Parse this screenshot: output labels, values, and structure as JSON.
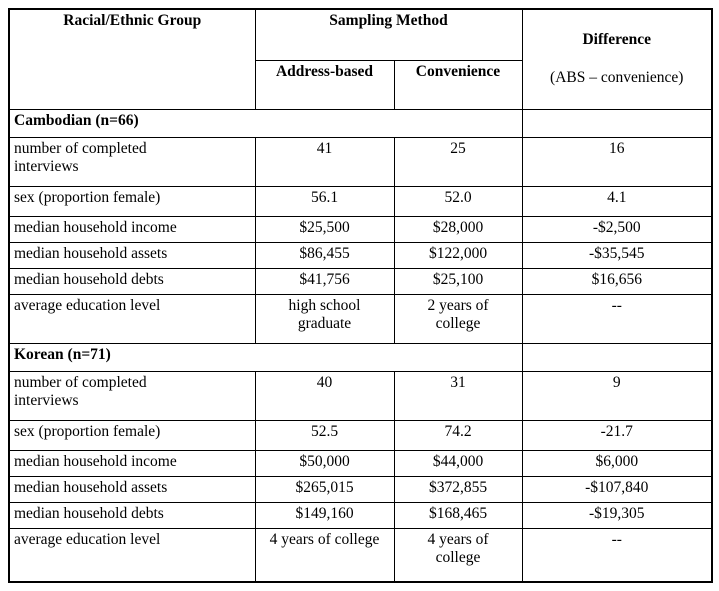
{
  "chart_data": {
    "type": "table",
    "header": {
      "group_col": "Racial/Ethnic Group",
      "sampling_method": "Sampling Method",
      "address_based": "Address-based",
      "convenience": "Convenience",
      "difference": "Difference",
      "difference_sub": "(ABS – convenience)"
    },
    "sections": [
      {
        "label": "Cambodian (n=66)",
        "rows": [
          {
            "label": "number of completed\ninterviews",
            "abs": "41",
            "conv": "25",
            "diff": "16"
          },
          {
            "label": "sex (proportion female)",
            "abs": "56.1",
            "conv": "52.0",
            "diff": "4.1"
          },
          {
            "label": "median household income",
            "abs": "$25,500",
            "conv": "$28,000",
            "diff": "-$2,500"
          },
          {
            "label": "median household assets",
            "abs": "$86,455",
            "conv": "$122,000",
            "diff": "-$35,545"
          },
          {
            "label": "median household debts",
            "abs": "$41,756",
            "conv": "$25,100",
            "diff": "$16,656"
          },
          {
            "label": "average education level",
            "abs": "high school\ngraduate",
            "conv": "2 years of\ncollege",
            "diff": "--"
          }
        ]
      },
      {
        "label": "Korean (n=71)",
        "rows": [
          {
            "label": "number of completed\ninterviews",
            "abs": "40",
            "conv": "31",
            "diff": "9"
          },
          {
            "label": "sex (proportion female)",
            "abs": "52.5",
            "conv": "74.2",
            "diff": "-21.7"
          },
          {
            "label": "median household income",
            "abs": "$50,000",
            "conv": "$44,000",
            "diff": "$6,000"
          },
          {
            "label": "median household assets",
            "abs": "$265,015",
            "conv": "$372,855",
            "diff": "-$107,840"
          },
          {
            "label": "median household debts",
            "abs": "$149,160",
            "conv": "$168,465",
            "diff": "-$19,305"
          },
          {
            "label": "average education level",
            "abs": "4 years of college",
            "conv": "4 years of\ncollege",
            "diff": "--"
          }
        ]
      }
    ]
  }
}
